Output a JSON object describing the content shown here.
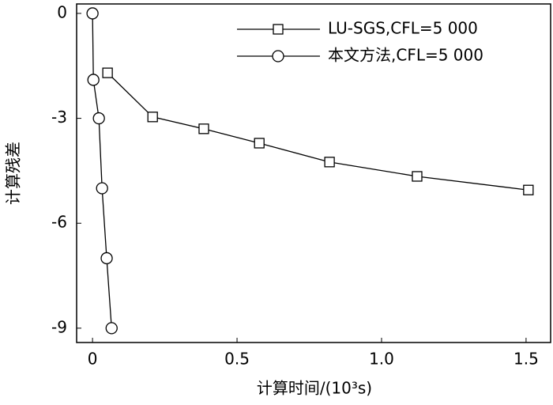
{
  "chart_data": {
    "type": "line",
    "x_label": "计算时间/(10³s)",
    "y_label": "计算残差",
    "xlim": [
      -0.055,
      1.585
    ],
    "ylim": [
      -9.41,
      0.27
    ],
    "xticks": [
      0,
      0.5,
      {
        "value": 1,
        "label": "1.0"
      },
      1.5
    ],
    "yticks": [
      0,
      -3,
      -6,
      -9
    ],
    "grid": false,
    "legend": "upper right",
    "series": [
      {
        "name": "LU-SGS,CFL=5 000",
        "color": "#000000",
        "marker": "square",
        "x": [
          0.052,
          0.208,
          0.385,
          0.577,
          0.82,
          1.123,
          1.508
        ],
        "values": [
          -1.7,
          -2.96,
          -3.3,
          -3.71,
          -4.25,
          -4.66,
          -5.05
        ]
      },
      {
        "name": "本文方法,CFL=5 000",
        "color": "#000000",
        "marker": "circle",
        "x": [
          0,
          0.003,
          0.022,
          0.033,
          0.049,
          0.066
        ],
        "values": [
          0,
          -1.9,
          -3,
          -5,
          -7,
          -9
        ]
      }
    ]
  }
}
